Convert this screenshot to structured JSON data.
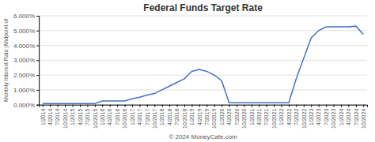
{
  "chart_data": {
    "type": "line",
    "title": "Federal Funds Target Rate",
    "y_label": "Monthly Interest Rate (Midpoint of",
    "x_label": "© 2024 MoneyCafe.com",
    "categories": [
      "1/2014",
      "4/2014",
      "7/2014",
      "10/2014",
      "1/2015",
      "4/2015",
      "7/2015",
      "10/2015",
      "1/2016",
      "4/2016",
      "7/2016",
      "10/2016",
      "1/2017",
      "4/2017",
      "7/2017",
      "10/2017",
      "1/2018",
      "4/2018",
      "7/2018",
      "10/2018",
      "1/2019",
      "4/2019",
      "7/2019",
      "10/2019",
      "1/2020",
      "4/2020",
      "7/2020",
      "10/2020",
      "1/2021",
      "4/2021",
      "7/2021",
      "10/2021",
      "1/2022",
      "4/2022",
      "7/2022",
      "10/2022",
      "1/2023",
      "4/2023",
      "7/2023",
      "10/2023",
      "1/2024",
      "4/2024",
      "7/2024",
      "10/2024"
    ],
    "values": [
      0.00075,
      0.00075,
      0.00075,
      0.00075,
      0.00075,
      0.00075,
      0.00075,
      0.00075,
      0.0025,
      0.0025,
      0.0025,
      0.0025,
      0.004,
      0.005,
      0.0065,
      0.0075,
      0.01,
      0.0125,
      0.015,
      0.0175,
      0.0225,
      0.02375,
      0.0225,
      0.02,
      0.01625,
      0.00125,
      0.00125,
      0.00125,
      0.00125,
      0.00125,
      0.00125,
      0.00125,
      0.00125,
      0.00125,
      0.0175,
      0.03125,
      0.045,
      0.05,
      0.0525,
      0.0525,
      0.0525,
      0.0525,
      0.053,
      0.0475
    ],
    "color": "#4472C4",
    "ylim": [
      0.0,
      0.06
    ],
    "yticks": [
      {
        "value": 0.0,
        "label": "0.000%"
      },
      {
        "value": 0.01,
        "label": "1.000%"
      },
      {
        "value": 0.02,
        "label": "2.000%"
      },
      {
        "value": 0.03,
        "label": "3.000%"
      },
      {
        "value": 0.04,
        "label": "4.000%"
      },
      {
        "value": 0.05,
        "label": "5.000%"
      },
      {
        "value": 0.06,
        "label": "6.000%"
      }
    ],
    "grid": true
  }
}
